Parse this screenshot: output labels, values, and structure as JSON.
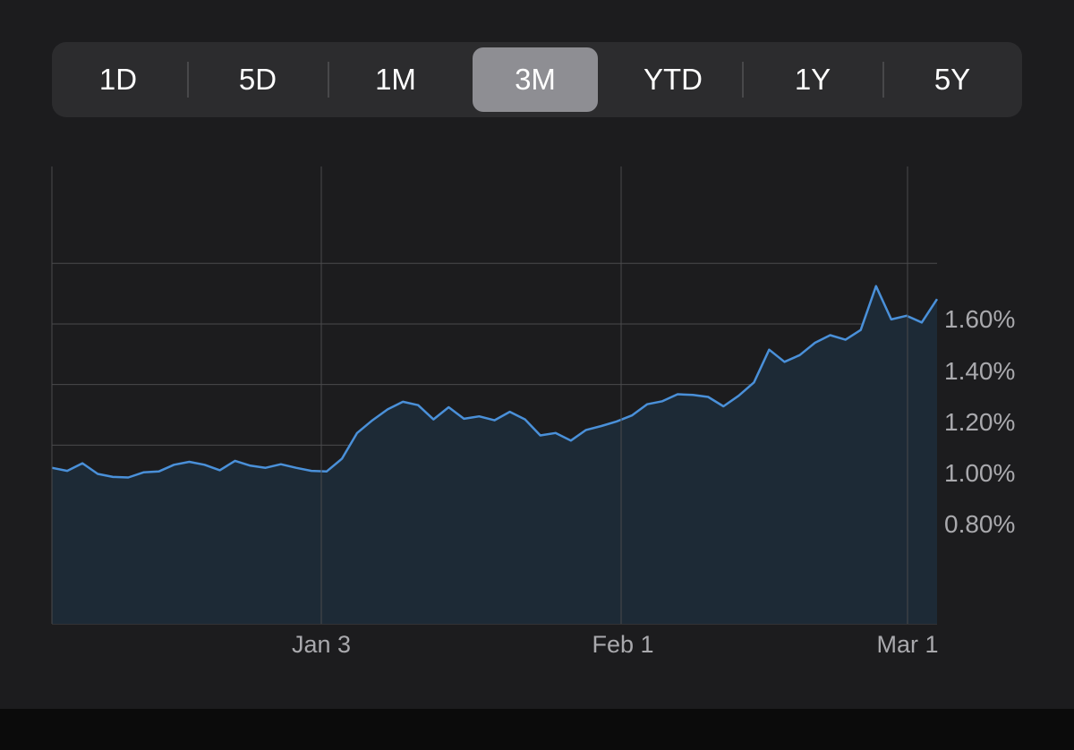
{
  "range_selector": {
    "options": [
      "1D",
      "5D",
      "1M",
      "3M",
      "YTD",
      "1Y",
      "5Y"
    ],
    "selected": "3M"
  },
  "colors": {
    "background": "#1c1c1e",
    "line": "#4a90d9",
    "area_fill": "#1d2a36",
    "grid": "#4a4a4c",
    "segment_active": "#8e8e93"
  },
  "chart_data": {
    "type": "area",
    "title": "",
    "xlabel": "",
    "ylabel": "",
    "x_ticks": [
      "Jan 3",
      "Feb 1",
      "Mar 1"
    ],
    "y_ticks": [
      "1.60%",
      "1.40%",
      "1.20%",
      "1.00%",
      "0.80%"
    ],
    "y_tick_values": [
      1.6,
      1.4,
      1.2,
      1.0,
      0.8
    ],
    "ylim": [
      0.41,
      1.92
    ],
    "grid": true,
    "series": [
      {
        "values": [
          0.925,
          0.915,
          0.94,
          0.905,
          0.895,
          0.893,
          0.91,
          0.913,
          0.935,
          0.945,
          0.935,
          0.917,
          0.948,
          0.932,
          0.925,
          0.937,
          0.925,
          0.915,
          0.913,
          0.955,
          1.04,
          1.082,
          1.118,
          1.143,
          1.132,
          1.085,
          1.125,
          1.087,
          1.095,
          1.082,
          1.11,
          1.085,
          1.032,
          1.04,
          1.015,
          1.05,
          1.063,
          1.078,
          1.098,
          1.135,
          1.145,
          1.168,
          1.166,
          1.159,
          1.128,
          1.163,
          1.207,
          1.315,
          1.275,
          1.297,
          1.338,
          1.363,
          1.348,
          1.38,
          1.525,
          1.415,
          1.427,
          1.405,
          1.482
        ]
      }
    ]
  }
}
